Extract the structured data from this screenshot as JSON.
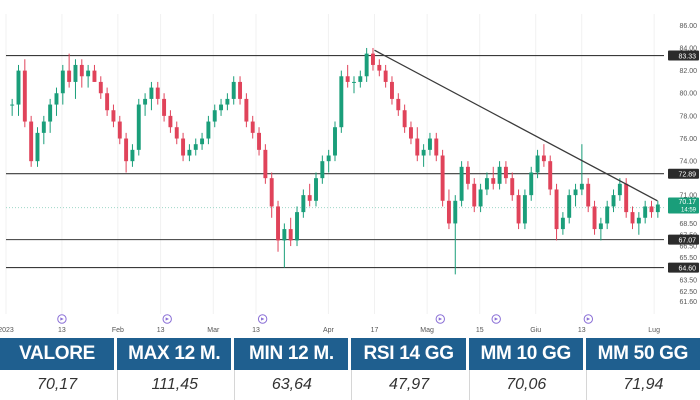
{
  "chart_data": {
    "type": "candlestick",
    "period_start": "2023-01",
    "period_end": "2023-07",
    "ylim": [
      60.5,
      87
    ],
    "y_ticks": [
      "86.00",
      "84.00",
      "82.00",
      "80.00",
      "78.00",
      "76.00",
      "74.00",
      "71.00",
      "70.00",
      "68.50",
      "67.50",
      "66.50",
      "65.50",
      "64.50",
      "63.50",
      "62.50",
      "61.60"
    ],
    "x_ticks": [
      {
        "pos": 0.0,
        "label": "2023"
      },
      {
        "pos": 0.085,
        "label": "13"
      },
      {
        "pos": 0.17,
        "label": "Feb"
      },
      {
        "pos": 0.235,
        "label": "13"
      },
      {
        "pos": 0.315,
        "label": "Mar"
      },
      {
        "pos": 0.38,
        "label": "13"
      },
      {
        "pos": 0.49,
        "label": "Apr"
      },
      {
        "pos": 0.56,
        "label": "17"
      },
      {
        "pos": 0.64,
        "label": "Mag"
      },
      {
        "pos": 0.72,
        "label": "15"
      },
      {
        "pos": 0.805,
        "label": "Giu"
      },
      {
        "pos": 0.875,
        "label": "13"
      },
      {
        "pos": 0.985,
        "label": "Lug"
      }
    ],
    "horizontal_levels": [
      {
        "value": 83.33,
        "label": "83.33"
      },
      {
        "value": 72.89,
        "label": "72.89"
      },
      {
        "value": 67.07,
        "label": "67.07"
      },
      {
        "value": 64.6,
        "label": "64.60"
      }
    ],
    "last_price": {
      "value": 70.17,
      "label": "70.17",
      "sublabel": "14:59"
    },
    "dotted_level": 69.9,
    "trendline": [
      {
        "pos": 0.56,
        "value": 83.8
      },
      {
        "pos": 0.99,
        "value": 70.5
      }
    ],
    "event_markers": [
      0.085,
      0.245,
      0.39,
      0.66,
      0.745,
      0.885
    ],
    "colors": {
      "up": "#1a9e7a",
      "down": "#e0435a",
      "levels": "#3a3a3a",
      "trend": "#3a3a3a",
      "last_price": "#1a9e7a",
      "dotted": "#9fd8c8"
    },
    "ohlc": [
      [
        79.0,
        79.5,
        78.0,
        79.0
      ],
      [
        79.0,
        82.5,
        78.0,
        82.0
      ],
      [
        82.0,
        83.0,
        77.0,
        77.5
      ],
      [
        77.5,
        78.0,
        73.5,
        74.0
      ],
      [
        74.0,
        77.0,
        73.5,
        76.5
      ],
      [
        76.5,
        78.0,
        75.5,
        77.5
      ],
      [
        77.5,
        79.5,
        76.5,
        79.0
      ],
      [
        79.0,
        80.5,
        78.0,
        80.0
      ],
      [
        80.0,
        82.5,
        79.0,
        82.0
      ],
      [
        82.0,
        83.5,
        80.5,
        81.0
      ],
      [
        81.0,
        83.0,
        79.5,
        82.5
      ],
      [
        82.5,
        83.0,
        80.5,
        81.5
      ],
      [
        81.5,
        82.5,
        80.5,
        82.0
      ],
      [
        82.0,
        82.5,
        81.0,
        81.0
      ],
      [
        81.0,
        81.5,
        79.5,
        80.0
      ],
      [
        80.0,
        80.5,
        78.0,
        78.5
      ],
      [
        78.5,
        79.0,
        77.0,
        77.5
      ],
      [
        77.5,
        78.0,
        75.5,
        76.0
      ],
      [
        76.0,
        76.5,
        73.0,
        74.0
      ],
      [
        74.0,
        75.5,
        73.5,
        75.0
      ],
      [
        75.0,
        79.5,
        74.5,
        79.0
      ],
      [
        79.0,
        80.0,
        78.0,
        79.5
      ],
      [
        79.5,
        81.0,
        78.5,
        80.5
      ],
      [
        80.5,
        81.0,
        79.0,
        79.5
      ],
      [
        79.5,
        80.0,
        77.5,
        78.0
      ],
      [
        78.0,
        78.5,
        76.5,
        77.0
      ],
      [
        77.0,
        77.5,
        75.5,
        76.0
      ],
      [
        76.0,
        76.5,
        74.0,
        74.5
      ],
      [
        74.5,
        75.5,
        74.0,
        75.0
      ],
      [
        75.0,
        76.0,
        74.5,
        75.5
      ],
      [
        75.5,
        76.5,
        75.0,
        76.0
      ],
      [
        76.0,
        78.0,
        75.5,
        77.5
      ],
      [
        77.5,
        79.0,
        77.0,
        78.5
      ],
      [
        78.5,
        79.5,
        78.0,
        79.0
      ],
      [
        79.0,
        80.0,
        78.5,
        79.5
      ],
      [
        79.5,
        81.5,
        79.0,
        81.0
      ],
      [
        81.0,
        81.5,
        79.0,
        79.5
      ],
      [
        79.5,
        80.0,
        77.0,
        77.5
      ],
      [
        77.5,
        78.0,
        76.0,
        76.5
      ],
      [
        76.5,
        77.0,
        74.5,
        75.0
      ],
      [
        75.0,
        75.5,
        72.0,
        72.5
      ],
      [
        72.5,
        73.0,
        69.0,
        70.0
      ],
      [
        70.0,
        70.5,
        66.0,
        67.0
      ],
      [
        67.0,
        68.5,
        64.6,
        68.0
      ],
      [
        68.0,
        69.0,
        66.5,
        67.0
      ],
      [
        67.0,
        70.0,
        66.5,
        69.5
      ],
      [
        69.5,
        71.5,
        69.0,
        71.0
      ],
      [
        71.0,
        72.0,
        70.0,
        70.5
      ],
      [
        70.5,
        73.0,
        70.0,
        72.5
      ],
      [
        72.5,
        74.5,
        72.0,
        74.0
      ],
      [
        74.0,
        75.0,
        73.0,
        74.5
      ],
      [
        74.5,
        77.5,
        74.0,
        77.0
      ],
      [
        77.0,
        82.0,
        76.5,
        81.5
      ],
      [
        81.5,
        82.5,
        80.5,
        81.0
      ],
      [
        81.0,
        81.5,
        80.0,
        81.0
      ],
      [
        81.0,
        82.0,
        80.5,
        81.5
      ],
      [
        81.5,
        84.0,
        81.0,
        83.5
      ],
      [
        83.5,
        84.0,
        82.0,
        82.5
      ],
      [
        82.5,
        83.0,
        81.5,
        82.0
      ],
      [
        82.0,
        82.5,
        80.5,
        81.0
      ],
      [
        81.0,
        81.5,
        79.0,
        79.5
      ],
      [
        79.5,
        80.0,
        78.0,
        78.5
      ],
      [
        78.5,
        79.0,
        76.5,
        77.0
      ],
      [
        77.0,
        77.5,
        75.5,
        76.0
      ],
      [
        76.0,
        77.0,
        74.0,
        74.5
      ],
      [
        74.5,
        75.5,
        73.5,
        75.0
      ],
      [
        75.0,
        76.5,
        74.5,
        76.0
      ],
      [
        76.0,
        76.5,
        74.0,
        74.5
      ],
      [
        74.5,
        75.0,
        70.0,
        70.5
      ],
      [
        70.5,
        71.5,
        68.0,
        68.5
      ],
      [
        68.5,
        71.0,
        64.0,
        70.5
      ],
      [
        70.5,
        74.0,
        70.0,
        73.5
      ],
      [
        73.5,
        74.0,
        71.5,
        72.0
      ],
      [
        72.0,
        72.5,
        69.5,
        70.0
      ],
      [
        70.0,
        72.0,
        69.5,
        71.5
      ],
      [
        71.5,
        73.0,
        71.0,
        72.5
      ],
      [
        72.5,
        73.5,
        71.5,
        72.0
      ],
      [
        72.0,
        74.0,
        71.5,
        73.5
      ],
      [
        73.5,
        74.0,
        72.0,
        72.5
      ],
      [
        72.5,
        73.0,
        70.5,
        71.0
      ],
      [
        71.0,
        71.5,
        68.0,
        68.5
      ],
      [
        68.5,
        71.5,
        68.0,
        71.0
      ],
      [
        71.0,
        73.5,
        70.5,
        73.0
      ],
      [
        73.0,
        75.0,
        72.5,
        74.5
      ],
      [
        74.5,
        75.5,
        73.5,
        74.0
      ],
      [
        74.0,
        74.5,
        71.0,
        71.5
      ],
      [
        71.5,
        72.0,
        67.0,
        68.0
      ],
      [
        68.0,
        69.5,
        67.5,
        69.0
      ],
      [
        69.0,
        71.5,
        68.5,
        71.0
      ],
      [
        71.0,
        72.0,
        70.0,
        71.5
      ],
      [
        71.5,
        75.5,
        71.0,
        72.0
      ],
      [
        72.0,
        72.5,
        69.5,
        70.0
      ],
      [
        70.0,
        70.5,
        67.5,
        68.0
      ],
      [
        68.0,
        69.0,
        67.0,
        68.5
      ],
      [
        68.5,
        70.5,
        68.0,
        70.0
      ],
      [
        70.0,
        71.5,
        69.5,
        71.0
      ],
      [
        71.0,
        72.5,
        70.5,
        72.0
      ],
      [
        72.0,
        72.5,
        69.0,
        69.5
      ],
      [
        69.5,
        70.0,
        68.0,
        68.5
      ],
      [
        68.5,
        69.5,
        67.5,
        69.0
      ],
      [
        69.0,
        70.5,
        68.5,
        70.0
      ],
      [
        70.0,
        70.5,
        69.0,
        69.5
      ],
      [
        69.5,
        70.5,
        69.0,
        70.17
      ]
    ]
  },
  "stats": [
    {
      "label": "VALORE",
      "value": "70,17"
    },
    {
      "label": "MAX 12 M.",
      "value": "111,45"
    },
    {
      "label": "MIN 12 M.",
      "value": "63,64"
    },
    {
      "label": "RSI 14 GG",
      "value": "47,97"
    },
    {
      "label": "MM 10 GG",
      "value": "70,06"
    },
    {
      "label": "MM 50 GG",
      "value": "71,94"
    }
  ],
  "event_marker_icon": "tv-event-icon"
}
